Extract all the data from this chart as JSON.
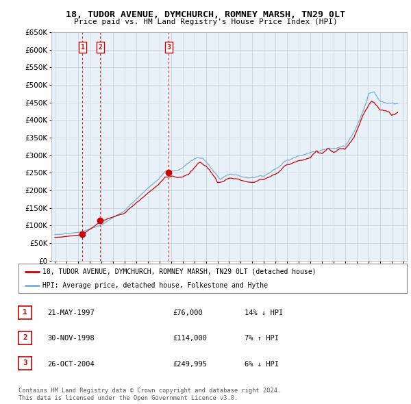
{
  "title": "18, TUDOR AVENUE, DYMCHURCH, ROMNEY MARSH, TN29 0LT",
  "subtitle": "Price paid vs. HM Land Registry's House Price Index (HPI)",
  "plot_bg_color": "#e8f0f8",
  "ylim": [
    0,
    650000
  ],
  "yticks": [
    0,
    50000,
    100000,
    150000,
    200000,
    250000,
    300000,
    350000,
    400000,
    450000,
    500000,
    550000,
    600000,
    650000
  ],
  "transactions": [
    {
      "label": "1",
      "date": "21-MAY-1997",
      "year": 1997.38,
      "price": 76000,
      "pct": "14%",
      "dir": "↓"
    },
    {
      "label": "2",
      "date": "30-NOV-1998",
      "year": 1998.91,
      "price": 114000,
      "pct": "7%",
      "dir": "↑"
    },
    {
      "label": "3",
      "date": "26-OCT-2004",
      "year": 2004.81,
      "price": 249995,
      "pct": "6%",
      "dir": "↓"
    }
  ],
  "legend_line1": "18, TUDOR AVENUE, DYMCHURCH, ROMNEY MARSH, TN29 0LT (detached house)",
  "legend_line2": "HPI: Average price, detached house, Folkestone and Hythe",
  "footer1": "Contains HM Land Registry data © Crown copyright and database right 2024.",
  "footer2": "This data is licensed under the Open Government Licence v3.0.",
  "red_color": "#cc0000",
  "blue_color": "#7bafd4",
  "grid_color": "#c8d4e0"
}
